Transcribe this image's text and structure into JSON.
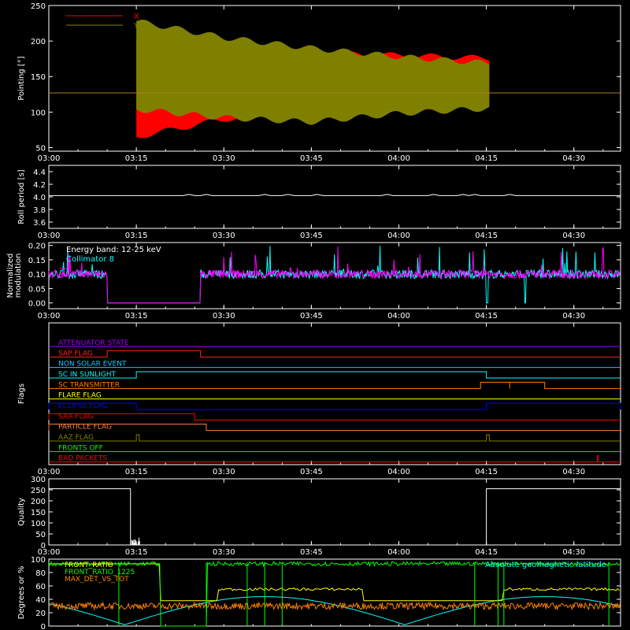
{
  "chart_data": [
    {
      "type": "area",
      "ylabel": "Pointing [°]",
      "ylim": [
        45,
        250
      ],
      "yticks": [
        50,
        100,
        150,
        200,
        250
      ],
      "xticks": [
        "03:00",
        "03:15",
        "03:30",
        "03:45",
        "04:00",
        "04:15",
        "04:30"
      ],
      "reference_line": 127,
      "series": [
        {
          "name": "X",
          "color": "#ff0000",
          "t": [
            "03:15",
            "03:30",
            "03:45",
            "04:00",
            "04:15"
          ],
          "upper": [
            205,
            190,
            183,
            180,
            176
          ],
          "lower": [
            65,
            90,
            104,
            107,
            109
          ]
        },
        {
          "name": "Y",
          "color": "#808000",
          "t": [
            "03:15",
            "03:30",
            "03:45",
            "04:00",
            "04:15"
          ],
          "upper": [
            228,
            205,
            190,
            178,
            169
          ],
          "lower": [
            104,
            92,
            86,
            98,
            105
          ]
        }
      ]
    },
    {
      "type": "line",
      "ylabel": "Roll period [s]",
      "ylim": [
        3.5,
        4.5
      ],
      "yticks": [
        "3.6",
        "3.8",
        "4.0",
        "4.2",
        "4.4"
      ],
      "xticks": [
        "03:00",
        "03:15",
        "03:30",
        "03:45",
        "04:00",
        "04:15",
        "04:30"
      ],
      "series": [
        {
          "color": "#ffffff",
          "value": 4.02
        }
      ]
    },
    {
      "type": "line",
      "ylabel": "Normalized modulation",
      "ylim": [
        -0.02,
        0.21
      ],
      "yticks": [
        "0.00",
        "0.05",
        "0.10",
        "0.15",
        "0.20"
      ],
      "xticks": [
        "03:00",
        "03:15",
        "03:30",
        "03:45",
        "04:00",
        "04:15",
        "04:30"
      ],
      "annotation": "Energy band: 12-25 keV",
      "series": [
        {
          "name": "Collimator 8",
          "color": "#00ffff",
          "baseline": 0.1
        },
        {
          "color": "#ff00ff",
          "baseline": 0.1,
          "gap_start": "03:10",
          "gap_end": "03:26"
        }
      ]
    },
    {
      "type": "line",
      "ylabel": "Flags",
      "xticks": [
        "03:00",
        "03:15",
        "03:30",
        "03:45",
        "04:00",
        "04:15",
        "04:30"
      ],
      "flags": [
        {
          "name": "ATTENUATOR STATE",
          "color": "#a000ff",
          "high": []
        },
        {
          "name": "SAP FLAG",
          "color": "#ff2020",
          "high": [
            [
              "03:10",
              "03:26"
            ]
          ]
        },
        {
          "name": "NON SOLAR EVENT",
          "color": "#00d0ff",
          "high": []
        },
        {
          "name": "SC IN SUNLIGHT",
          "color": "#00ffff",
          "high": [
            [
              "03:15",
              "04:15"
            ]
          ]
        },
        {
          "name": "SC TRANSMITTER",
          "color": "#ff8000",
          "high": [
            [
              "04:14",
              "04:19"
            ],
            [
              "04:19",
              "04:25"
            ]
          ]
        },
        {
          "name": "FLARE FLAG",
          "color": "#ffff00",
          "high": []
        },
        {
          "name": "ECLIPSE FLAG",
          "color": "#0000ff",
          "high": [
            [
              "03:00",
              "03:15"
            ],
            [
              "04:15",
              "04:38"
            ]
          ]
        },
        {
          "name": "SAA FLAG",
          "color": "#ff0000",
          "high": [
            [
              "03:00",
              "03:25"
            ]
          ]
        },
        {
          "name": "PARTICLE FLAG",
          "color": "#ff8040",
          "high": [
            [
              "03:00",
              "03:27"
            ]
          ]
        },
        {
          "name": "AAZ FLAG",
          "color": "#808000",
          "high": [
            [
              "03:15",
              "03:15.5"
            ],
            [
              "04:15",
              "04:15.5"
            ]
          ]
        },
        {
          "name": "FRONTS OFF",
          "color": "#00ff00",
          "high": []
        },
        {
          "name": "BAD PACKETS",
          "color": "#ff0000",
          "high": [
            [
              "04:34",
              "04:34.2"
            ]
          ]
        }
      ]
    },
    {
      "type": "line",
      "ylabel": "Quality",
      "ylim": [
        0,
        300
      ],
      "yticks": [
        0,
        50,
        100,
        150,
        200,
        250,
        300
      ],
      "xticks": [
        "03:00",
        "03:15",
        "03:30",
        "03:45",
        "04:00",
        "04:15",
        "04:30"
      ],
      "series": [
        {
          "color": "#ffffff",
          "points": [
            [
              "03:00",
              255
            ],
            [
              "03:14",
              255
            ],
            [
              "03:14",
              0
            ],
            [
              "04:15",
              0
            ],
            [
              "04:15",
              255
            ],
            [
              "04:38",
              255
            ]
          ]
        }
      ]
    },
    {
      "type": "line",
      "ylabel": "Degrees or %",
      "ylim": [
        0,
        100
      ],
      "yticks": [
        0,
        20,
        40,
        60,
        80,
        100
      ],
      "legend": [
        "FRONT_RATIO",
        "FRONT_RATIO_1225",
        "MAX_DET_VS_TOT"
      ],
      "legend_colors": [
        "#ffff00",
        "#00ff00",
        "#ff8000"
      ],
      "annotation": "Absolute geomagnetic latitude",
      "annotation_color": "#00ffff",
      "series": [
        {
          "name": "FRONT_RATIO",
          "color": "#ffff00"
        },
        {
          "name": "FRONT_RATIO_1225",
          "color": "#00ff00"
        },
        {
          "name": "MAX_DET_VS_TOT",
          "color": "#ff8000",
          "baseline": 30
        },
        {
          "name": "Absolute geomagnetic latitude",
          "color": "#00ffff"
        }
      ]
    }
  ]
}
